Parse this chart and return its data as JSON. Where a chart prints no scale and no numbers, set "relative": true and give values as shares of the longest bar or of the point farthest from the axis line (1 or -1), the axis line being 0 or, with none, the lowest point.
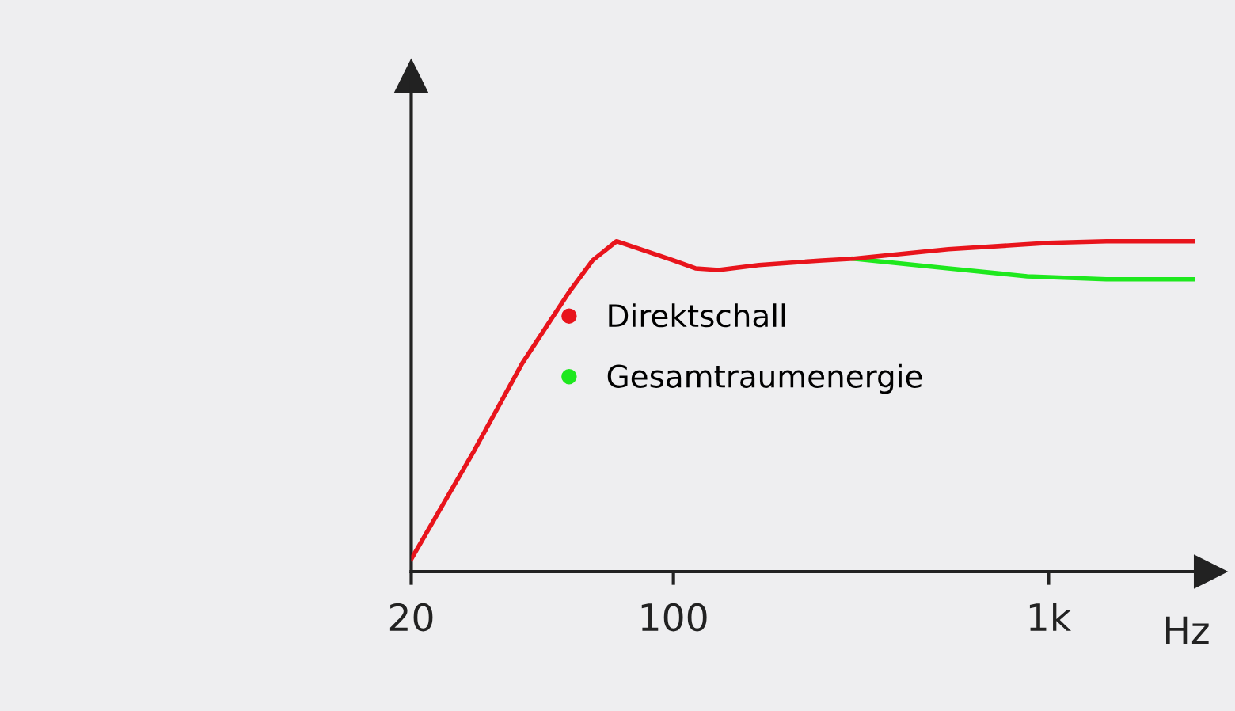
{
  "chart_data": {
    "type": "line",
    "relative": true,
    "log": "x",
    "xlabel": "Hz",
    "xlim": [
      20,
      2700
    ],
    "xticks": [
      20,
      100,
      {
        "value": 1000,
        "label": "1k"
      }
    ],
    "series": [
      {
        "name": "Direktschall",
        "color": "#e8141c",
        "x": [
          20,
          29.4,
          39.5,
          52.7,
          60.9,
          70.5,
          81.5,
          100,
          114.5,
          132,
          169,
          249,
          302,
          541,
          1000,
          1426,
          2430
        ],
        "values": [
          0.038,
          0.365,
          0.63,
          0.846,
          0.942,
          1,
          0.976,
          0.942,
          0.918,
          0.913,
          0.928,
          0.942,
          0.947,
          0.976,
          0.995,
          1,
          1
        ]
      },
      {
        "name": "Gesamtraumenergie",
        "color": "#1ee81e",
        "x": [
          302,
          541,
          877,
          1426,
          2430
        ],
        "values": [
          0.947,
          0.918,
          0.894,
          0.885,
          0.885
        ]
      }
    ],
    "legend": "center",
    "marker": "none",
    "line_style": "solid",
    "grid": false
  }
}
